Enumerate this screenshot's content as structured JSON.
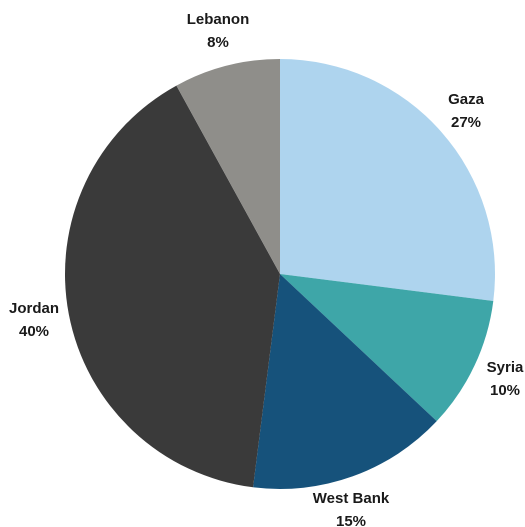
{
  "chart_data": {
    "type": "pie",
    "title": "",
    "legend": "none",
    "start_angle_deg": 0,
    "direction": "clockwise",
    "slices": [
      {
        "name": "Gaza",
        "value": 27,
        "label": "27%",
        "color": "#aed4ee"
      },
      {
        "name": "Syria",
        "value": 10,
        "label": "10%",
        "color": "#3ea6a8"
      },
      {
        "name": "West Bank",
        "value": 15,
        "label": "15%",
        "color": "#16527b"
      },
      {
        "name": "Jordan",
        "value": 40,
        "label": "40%",
        "color": "#3a3a3a"
      },
      {
        "name": "Lebanon",
        "value": 8,
        "label": "8%",
        "color": "#8f8e8a"
      }
    ]
  }
}
